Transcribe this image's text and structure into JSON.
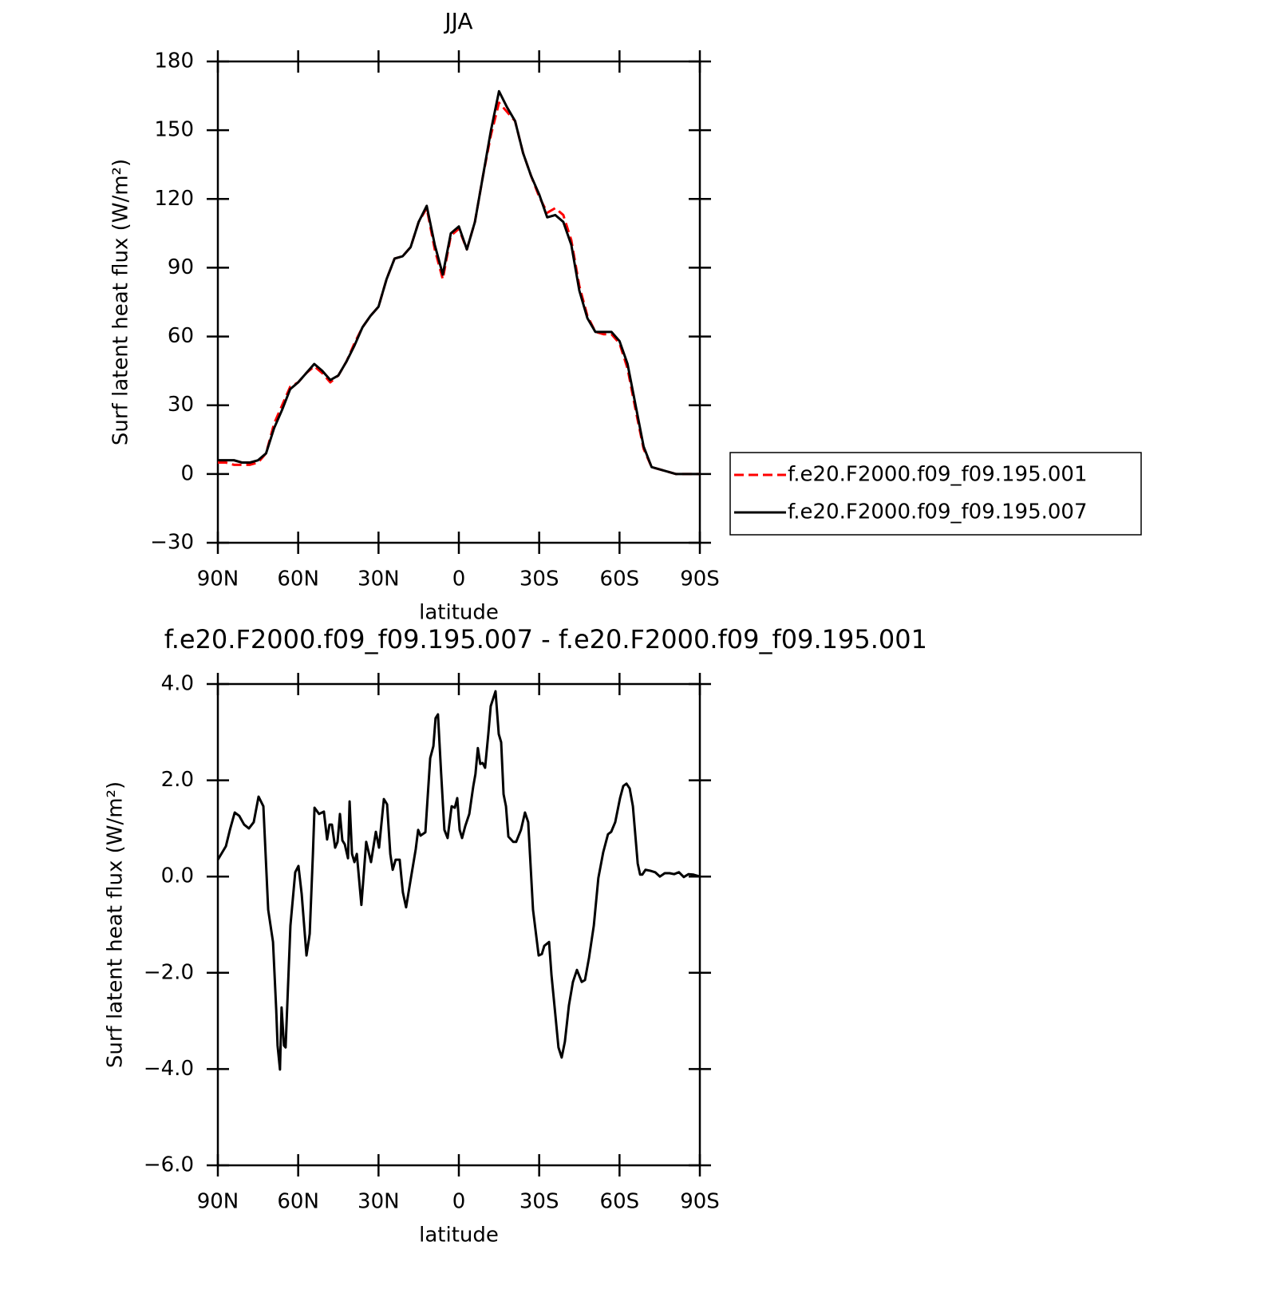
{
  "chart_data": [
    {
      "type": "line",
      "title": "JJA",
      "xlabel": "latitude",
      "ylabel": "Surf latent heat flux (W/m²)",
      "xlim": [
        90,
        -90
      ],
      "xticks": [
        {
          "value": 90,
          "label": "90N"
        },
        {
          "value": 60,
          "label": "60N"
        },
        {
          "value": 30,
          "label": "30N"
        },
        0,
        {
          "value": -30,
          "label": "30S"
        },
        {
          "value": -60,
          "label": "60S"
        },
        {
          "value": -90,
          "label": "90S"
        }
      ],
      "ylim": [
        -30,
        180
      ],
      "yticks": [
        {
          "value": -30,
          "label": "−30"
        },
        0,
        30,
        60,
        90,
        120,
        150,
        180
      ],
      "legend": "outside-right",
      "x": [
        90,
        87,
        84,
        81,
        78,
        75,
        72,
        69,
        66,
        63,
        60,
        57,
        54,
        51,
        48,
        45,
        42,
        39,
        36,
        33,
        30,
        27,
        24,
        21,
        18,
        15,
        12,
        9,
        6,
        3,
        0,
        -3,
        -6,
        -9,
        -12,
        -15,
        -18,
        -21,
        -24,
        -27,
        -30,
        -33,
        -36,
        -39,
        -42,
        -45,
        -48,
        -51,
        -54,
        -57,
        -60,
        -63,
        -66,
        -69,
        -72,
        -75,
        -78,
        -81,
        -84,
        -87,
        -90
      ],
      "series": [
        {
          "name": "f.e20.F2000.f09_f09.195.001",
          "color": "#ff0000",
          "line_style": "dashed",
          "values": [
            5,
            5,
            4,
            4,
            4,
            5,
            9,
            22,
            30,
            38,
            40,
            44,
            47,
            44,
            40,
            43,
            49,
            57,
            64,
            69,
            73,
            85,
            94,
            95,
            99,
            110,
            116,
            98,
            85,
            104,
            107,
            98,
            110,
            130,
            148,
            162,
            158,
            154,
            140,
            130,
            121,
            114,
            116,
            113,
            102,
            82,
            69,
            62,
            61,
            61,
            57,
            46,
            28,
            11,
            3,
            2,
            1,
            0,
            0,
            0,
            0
          ]
        },
        {
          "name": "f.e20.F2000.f09_f09.195.007",
          "color": "#000000",
          "line_style": "solid",
          "values": [
            6,
            6,
            6,
            5,
            5,
            6,
            9,
            20,
            28,
            37,
            40,
            44,
            48,
            45,
            41,
            43,
            49,
            56,
            64,
            69,
            73,
            85,
            94,
            95,
            99,
            110,
            117,
            100,
            87,
            105,
            108,
            98,
            110,
            130,
            150,
            167,
            160,
            154,
            140,
            130,
            122,
            112,
            113,
            110,
            100,
            80,
            68,
            62,
            62,
            62,
            58,
            48,
            30,
            12,
            3,
            2,
            1,
            0,
            0,
            0,
            0
          ]
        }
      ]
    },
    {
      "type": "line",
      "title": "f.e20.F2000.f09_f09.195.007 - f.e20.F2000.f09_f09.195.001",
      "xlabel": "latitude",
      "ylabel": "Surf latent heat flux (W/m²)",
      "xlim": [
        90,
        -90
      ],
      "xticks": [
        {
          "value": 90,
          "label": "90N"
        },
        {
          "value": 60,
          "label": "60N"
        },
        {
          "value": 30,
          "label": "30N"
        },
        0,
        {
          "value": -30,
          "label": "30S"
        },
        {
          "value": -60,
          "label": "60S"
        },
        {
          "value": -90,
          "label": "90S"
        }
      ],
      "ylim": [
        -6,
        4
      ],
      "yticks": [
        {
          "value": -6,
          "label": "−6.0"
        },
        {
          "value": -4,
          "label": "−4.0"
        },
        {
          "value": -2,
          "label": "−2.0"
        },
        {
          "value": 0,
          "label": "0.0"
        },
        {
          "value": 2,
          "label": "2.0"
        },
        {
          "value": 4,
          "label": "4.0"
        }
      ],
      "x": [
        90,
        87,
        85.5,
        83.7,
        82,
        80.2,
        78.4,
        76.6,
        74.8,
        73,
        71.2,
        69.4,
        68.2,
        67.7,
        66.8,
        66.2,
        65.3,
        64.7,
        62.9,
        61.1,
        59.9,
        58.7,
        56.9,
        55.7,
        54.5,
        53.9,
        52.2,
        50.4,
        49.2,
        48.3,
        47.4,
        46.2,
        45.3,
        44.4,
        43.5,
        42.6,
        41.4,
        40.8,
        39.9,
        39,
        38.1,
        36.4,
        34.6,
        32.8,
        31,
        29.8,
        28,
        26.8,
        25.6,
        24.7,
        23.6,
        22.1,
        20.9,
        19.7,
        17.9,
        16.1,
        15.2,
        14.3,
        12.5,
        10.7,
        9.5,
        8.7,
        7.8,
        6.6,
        5.4,
        4.2,
        2.7,
        1.5,
        0.6,
        -0.3,
        -1.2,
        -2.4,
        -3.9,
        -5.4,
        -6.2,
        -7.1,
        -8,
        -8.9,
        -9.8,
        -11,
        -11.9,
        -13.7,
        -14.9,
        -15.8,
        -16.7,
        -17.6,
        -18.5,
        -20.3,
        -21.4,
        -23.2,
        -24.7,
        -25.9,
        -27.7,
        -29.8,
        -31,
        -31.9,
        -33.7,
        -34.6,
        -36,
        -37.2,
        -38.4,
        -39.6,
        -41.1,
        -42.6,
        -44.1,
        -45.9,
        -47.1,
        -48.6,
        -50.4,
        -52.1,
        -53.9,
        -55.7,
        -56.9,
        -58.4,
        -60.2,
        -61.4,
        -62.6,
        -63.8,
        -65,
        -66.8,
        -67.7,
        -68.5,
        -69.7,
        -71.5,
        -73.3,
        -75.1,
        -76.9,
        -78.7,
        -80.4,
        -82.2,
        -84,
        -85.8,
        -87.6,
        -90
      ],
      "series": [
        {
          "color": "#000000",
          "line_style": "solid",
          "values": [
            0.35,
            0.63,
            0.97,
            1.33,
            1.26,
            1.08,
            1.0,
            1.13,
            1.66,
            1.46,
            -0.69,
            -1.36,
            -2.77,
            -3.51,
            -4.01,
            -2.72,
            -3.51,
            -3.55,
            -1.02,
            0.09,
            0.22,
            -0.36,
            -1.64,
            -1.19,
            0.47,
            1.43,
            1.3,
            1.35,
            0.77,
            1.08,
            1.08,
            0.6,
            0.72,
            1.3,
            0.75,
            0.67,
            0.38,
            1.56,
            0.47,
            0.3,
            0.47,
            -0.59,
            0.72,
            0.3,
            0.93,
            0.6,
            1.61,
            1.5,
            0.47,
            0.14,
            0.35,
            0.35,
            -0.33,
            -0.64,
            -0.03,
            0.57,
            0.97,
            0.85,
            0.92,
            2.46,
            2.71,
            3.29,
            3.37,
            2.13,
            0.97,
            0.8,
            1.46,
            1.43,
            1.63,
            0.97,
            0.8,
            1.05,
            1.3,
            1.88,
            2.13,
            2.67,
            2.34,
            2.36,
            2.26,
            2.96,
            3.54,
            3.85,
            2.96,
            2.79,
            1.71,
            1.46,
            0.83,
            0.72,
            0.72,
            0.97,
            1.33,
            1.13,
            -0.69,
            -1.64,
            -1.61,
            -1.44,
            -1.36,
            -2.05,
            -2.85,
            -3.55,
            -3.76,
            -3.43,
            -2.68,
            -2.19,
            -1.94,
            -2.19,
            -2.15,
            -1.69,
            -1.02,
            -0.03,
            0.5,
            0.88,
            0.93,
            1.13,
            1.63,
            1.88,
            1.93,
            1.83,
            1.46,
            0.27,
            0.04,
            0.04,
            0.14,
            0.12,
            0.09,
            0.0,
            0.07,
            0.07,
            0.05,
            0.09,
            -0.01,
            0.05,
            0.04,
            0.0
          ]
        }
      ]
    }
  ]
}
